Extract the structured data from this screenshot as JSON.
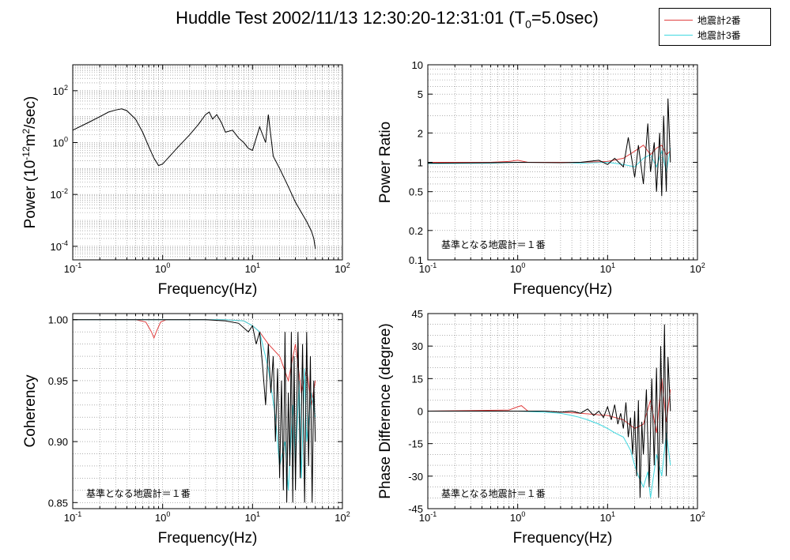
{
  "title": {
    "text": "Huddle Test  2002/11/13  12:30:20-12:31:01 (T",
    "sub": "0",
    "tail": "=5.0sec)"
  },
  "legend": [
    {
      "label": "地震計2番",
      "color": "#e04040"
    },
    {
      "label": "地震計3番",
      "color": "#40d8e0"
    }
  ],
  "colors": {
    "seis2": "#e04040",
    "seis3": "#40d8e0",
    "ref": "#000000",
    "grid": "#808080"
  },
  "chart_data": [
    {
      "type": "line",
      "id": "power",
      "xlabel": "Frequency(Hz)",
      "ylabel_parts": [
        "Power (10",
        "-12",
        "m",
        "2",
        "/sec)"
      ],
      "xscale": "log",
      "yscale": "log",
      "xlim": [
        0.1,
        100
      ],
      "ylim": [
        3e-05,
        1000
      ],
      "xticks": [
        {
          "v": 0.1,
          "b": "10",
          "e": "-1"
        },
        {
          "v": 1,
          "b": "10",
          "e": "0"
        },
        {
          "v": 10,
          "b": "10",
          "e": "1"
        },
        {
          "v": 100,
          "b": "10",
          "e": "2"
        }
      ],
      "yticks": [
        {
          "v": 0.0001,
          "b": "10",
          "e": "-4"
        },
        {
          "v": 0.01,
          "b": "10",
          "e": "-2"
        },
        {
          "v": 1,
          "b": "10",
          "e": "0"
        },
        {
          "v": 100,
          "b": "10",
          "e": "2"
        }
      ],
      "grid": true,
      "series": [
        {
          "color": "#000000",
          "x": [
            0.1,
            0.15,
            0.2,
            0.25,
            0.3,
            0.35,
            0.4,
            0.5,
            0.6,
            0.7,
            0.8,
            0.9,
            1.0,
            1.2,
            1.5,
            2.0,
            2.5,
            3.0,
            3.3,
            3.6,
            4.0,
            4.5,
            5.0,
            6.0,
            7.0,
            8.0,
            9.0,
            10.0,
            12.0,
            14.0,
            15.0,
            17.0,
            20.0,
            25.0,
            30.0,
            35.0,
            40.0,
            45.0,
            48.0,
            50.0
          ],
          "y": [
            3.0,
            6.0,
            10.0,
            15.0,
            18.0,
            20.0,
            17.0,
            8.0,
            2.5,
            0.7,
            0.25,
            0.13,
            0.15,
            0.3,
            0.7,
            2.0,
            5.0,
            12.0,
            15.0,
            8.0,
            12.0,
            6.0,
            2.5,
            3.0,
            1.5,
            1.0,
            0.6,
            0.5,
            4.0,
            1.0,
            12.0,
            0.3,
            0.1,
            0.02,
            0.005,
            0.002,
            0.0009,
            0.0004,
            0.0002,
            8e-05
          ]
        }
      ],
      "annotation": ""
    },
    {
      "type": "line",
      "id": "power-ratio",
      "xlabel": "Frequency(Hz)",
      "ylabel": "Power Ratio",
      "xscale": "log",
      "yscale": "log",
      "xlim": [
        0.1,
        100
      ],
      "ylim": [
        0.1,
        10
      ],
      "xticks": [
        {
          "v": 0.1,
          "b": "10",
          "e": "-1"
        },
        {
          "v": 1,
          "b": "10",
          "e": "0"
        },
        {
          "v": 10,
          "b": "10",
          "e": "1"
        },
        {
          "v": 100,
          "b": "10",
          "e": "2"
        }
      ],
      "yticks_plain": [
        0.1,
        0.2,
        0.5,
        1,
        2,
        5,
        10
      ],
      "grid": true,
      "series": [
        {
          "color": "#40d8e0",
          "x": [
            0.1,
            0.5,
            1,
            3,
            5,
            10,
            15,
            20,
            25,
            30,
            35,
            40,
            45,
            50
          ],
          "y": [
            0.97,
            0.98,
            1.0,
            1.0,
            0.98,
            1.0,
            0.95,
            0.9,
            1.1,
            1.2,
            0.9,
            1.3,
            0.8,
            1.4
          ]
        },
        {
          "color": "#e04040",
          "x": [
            0.1,
            0.5,
            0.8,
            1.0,
            1.3,
            3,
            5,
            10,
            15,
            20,
            25,
            30,
            35,
            40,
            45,
            50
          ],
          "y": [
            1.0,
            1.0,
            1.02,
            1.05,
            1.0,
            1.0,
            1.0,
            1.02,
            1.1,
            1.3,
            1.5,
            1.2,
            1.4,
            1.5,
            1.2,
            1.3
          ]
        },
        {
          "color": "#000000",
          "x": [
            0.1,
            0.5,
            1,
            3,
            5,
            8,
            10,
            12,
            15,
            17,
            20,
            22,
            25,
            28,
            30,
            33,
            35,
            38,
            40,
            42,
            45,
            47,
            50
          ],
          "y": [
            0.98,
            0.99,
            1.0,
            0.99,
            1.0,
            1.05,
            0.95,
            1.1,
            0.9,
            1.8,
            0.7,
            1.5,
            0.6,
            2.5,
            0.8,
            1.6,
            0.5,
            2.0,
            0.45,
            3.0,
            0.5,
            4.5,
            1.0
          ]
        }
      ],
      "annotation": "基準となる地震計＝１番"
    },
    {
      "type": "line",
      "id": "coherency",
      "xlabel": "Frequency(Hz)",
      "ylabel": "Coherency",
      "xscale": "log",
      "yscale": "linear",
      "xlim": [
        0.1,
        100
      ],
      "ylim": [
        0.845,
        1.005
      ],
      "xticks": [
        {
          "v": 0.1,
          "b": "10",
          "e": "-1"
        },
        {
          "v": 1,
          "b": "10",
          "e": "0"
        },
        {
          "v": 10,
          "b": "10",
          "e": "1"
        },
        {
          "v": 100,
          "b": "10",
          "e": "2"
        }
      ],
      "yticks_plain": [
        0.85,
        0.9,
        0.95,
        1.0
      ],
      "yticks_fmt": 2,
      "grid": true,
      "series": [
        {
          "color": "#e04040",
          "x": [
            0.1,
            0.5,
            0.65,
            0.75,
            0.8,
            0.85,
            0.95,
            1.1,
            1.5,
            3,
            5,
            8,
            10,
            12,
            15,
            20,
            25,
            30,
            35,
            40,
            45,
            50
          ],
          "y": [
            1.0,
            1.0,
            0.998,
            0.99,
            0.985,
            0.99,
            0.998,
            1.0,
            1.0,
            1.0,
            1.0,
            0.999,
            0.995,
            0.99,
            0.98,
            0.97,
            0.95,
            0.98,
            0.94,
            0.96,
            0.93,
            0.95
          ]
        },
        {
          "color": "#40d8e0",
          "x": [
            0.1,
            1,
            3,
            5,
            8,
            10,
            12,
            15,
            18,
            20,
            23,
            25,
            28,
            30,
            33,
            35,
            38,
            40,
            45,
            50
          ],
          "y": [
            1.0,
            1.0,
            1.0,
            1.0,
            0.999,
            0.995,
            0.99,
            0.96,
            0.92,
            0.88,
            0.9,
            0.86,
            0.93,
            0.88,
            0.95,
            0.87,
            0.96,
            0.9,
            0.94,
            0.92
          ]
        },
        {
          "color": "#000000",
          "x": [
            0.1,
            1,
            2,
            3,
            5,
            7,
            9,
            10,
            11,
            12,
            13,
            14,
            15,
            16,
            17,
            18,
            19,
            20,
            21,
            22,
            23,
            24,
            25,
            26,
            27,
            28,
            29,
            30,
            32,
            34,
            36,
            38,
            40,
            42,
            44,
            46,
            48,
            50
          ],
          "y": [
            1.0,
            1.0,
            1.0,
            1.0,
            0.999,
            0.997,
            0.99,
            0.995,
            0.98,
            0.99,
            0.96,
            0.93,
            0.98,
            0.94,
            0.97,
            0.9,
            0.96,
            0.87,
            0.95,
            0.86,
            0.99,
            0.85,
            0.94,
            0.88,
            0.99,
            0.85,
            0.97,
            0.86,
            0.99,
            0.87,
            0.98,
            0.85,
            0.99,
            0.88,
            0.97,
            0.85,
            0.95,
            0.9
          ]
        }
      ],
      "annotation": "基準となる地震計＝１番"
    },
    {
      "type": "line",
      "id": "phase-difference",
      "xlabel": "Frequency(Hz)",
      "ylabel": "Phase Difference (degree)",
      "xscale": "log",
      "yscale": "linear",
      "xlim": [
        0.1,
        100
      ],
      "ylim": [
        -45,
        45
      ],
      "xticks": [
        {
          "v": 0.1,
          "b": "10",
          "e": "-1"
        },
        {
          "v": 1,
          "b": "10",
          "e": "0"
        },
        {
          "v": 10,
          "b": "10",
          "e": "1"
        },
        {
          "v": 100,
          "b": "10",
          "e": "2"
        }
      ],
      "yticks_plain": [
        -45,
        -30,
        -15,
        0,
        15,
        30,
        45
      ],
      "grid": true,
      "series": [
        {
          "color": "#40d8e0",
          "x": [
            0.1,
            1,
            2,
            3,
            4,
            5,
            6,
            8,
            10,
            12,
            15,
            18,
            20,
            22,
            25,
            28,
            30,
            35,
            40,
            45,
            50
          ],
          "y": [
            0,
            0,
            -0.5,
            -1,
            -2,
            -3,
            -4,
            -6,
            -8,
            -10,
            -12,
            -18,
            -25,
            -30,
            -35,
            -28,
            -40,
            -20,
            -30,
            -10,
            -25
          ]
        },
        {
          "color": "#e04040",
          "x": [
            0.1,
            0.8,
            1.0,
            1.1,
            1.3,
            2,
            5,
            10,
            15,
            20,
            25,
            30,
            35,
            40,
            45,
            50
          ],
          "y": [
            0,
            0.5,
            2,
            2.5,
            0,
            0,
            -1,
            -2,
            -4,
            -8,
            -6,
            5,
            -10,
            15,
            -5,
            10
          ]
        },
        {
          "color": "#000000",
          "x": [
            0.1,
            1,
            2,
            3,
            4,
            5,
            6,
            7,
            8,
            9,
            10,
            11,
            12,
            13,
            14,
            15,
            16,
            17,
            18,
            19,
            20,
            21,
            22,
            23,
            24,
            25,
            27,
            29,
            31,
            33,
            35,
            37,
            39,
            41,
            43,
            45,
            47,
            50
          ],
          "y": [
            0,
            0,
            0,
            -0.5,
            0,
            -1,
            1,
            -2,
            0,
            -3,
            2,
            -4,
            3,
            -6,
            -1,
            -8,
            4,
            -12,
            -3,
            -20,
            0,
            -30,
            5,
            -40,
            -5,
            -20,
            10,
            -35,
            15,
            -25,
            20,
            -40,
            30,
            -15,
            40,
            -30,
            25,
            0
          ]
        }
      ],
      "annotation": "基準となる地震計＝１番"
    }
  ]
}
